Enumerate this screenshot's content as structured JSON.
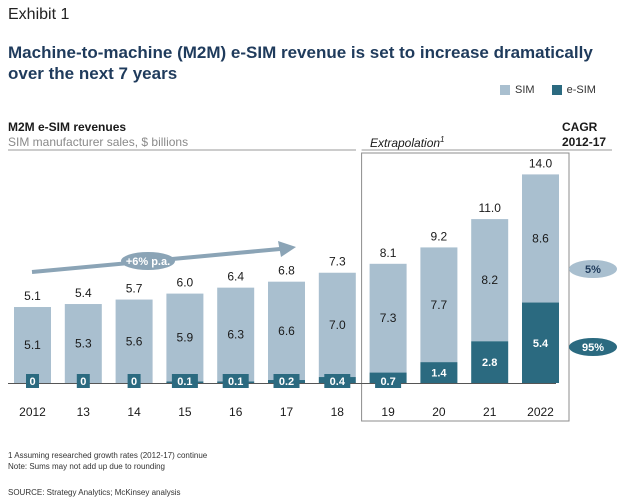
{
  "exhibit_label": "Exhibit 1",
  "title": "Machine-to-machine (M2M) e-SIM revenue is set to increase dramatically over the next 7 years",
  "subtitle": "M2M e-SIM revenues",
  "subtitle_units": "SIM manufacturer sales, $ billions",
  "extrapolation_label": "Extrapolation",
  "extrapolation_footnote_mark": "1",
  "cagr_header_line1": "CAGR",
  "cagr_header_line2": "2012-17",
  "growth_annotation": "+6% p.a.",
  "legend": [
    {
      "name": "SIM",
      "color": "#a9bfcf"
    },
    {
      "name": "e-SIM",
      "color": "#2b6a80"
    }
  ],
  "footnote_1": "1 Assuming researched growth rates (2012-17) continue",
  "footnote_2": "Note: Sums may not add up due to rounding",
  "source": "SOURCE: Strategy Analytics; McKinsey analysis",
  "chart_data": {
    "type": "bar",
    "stacked": true,
    "categories": [
      "2012",
      "13",
      "14",
      "15",
      "16",
      "17",
      "18",
      "19",
      "20",
      "21",
      "2022"
    ],
    "series": [
      {
        "name": "e-SIM",
        "values": [
          0,
          0,
          0,
          0.1,
          0.1,
          0.2,
          0.4,
          0.7,
          1.4,
          2.8,
          5.4
        ],
        "labels": [
          "0",
          "0",
          "0",
          "0.1",
          "0.1",
          "0.2",
          "0.4",
          "0.7",
          "1.4",
          "2.8",
          "5.4"
        ]
      },
      {
        "name": "SIM",
        "values": [
          5.1,
          5.3,
          5.6,
          5.9,
          6.3,
          6.6,
          7.0,
          7.3,
          7.7,
          8.2,
          8.6
        ],
        "labels": [
          "5.1",
          "5.3",
          "5.6",
          "5.9",
          "6.3",
          "6.6",
          "7.0",
          "7.3",
          "7.7",
          "8.2",
          "8.6"
        ]
      }
    ],
    "totals": [
      5.1,
      5.4,
      5.7,
      6.0,
      6.4,
      6.8,
      7.3,
      8.1,
      9.2,
      11.0,
      14.0
    ],
    "total_labels": [
      "5.1",
      "5.4",
      "5.7",
      "6.0",
      "6.4",
      "6.8",
      "7.3",
      "8.1",
      "9.2",
      "11.0",
      "14.0"
    ],
    "extrapolation_from_index": 7,
    "cagr": [
      {
        "series": "SIM",
        "label": "5%"
      },
      {
        "series": "e-SIM",
        "label": "95%"
      }
    ],
    "ylim": [
      0,
      14.5
    ]
  }
}
